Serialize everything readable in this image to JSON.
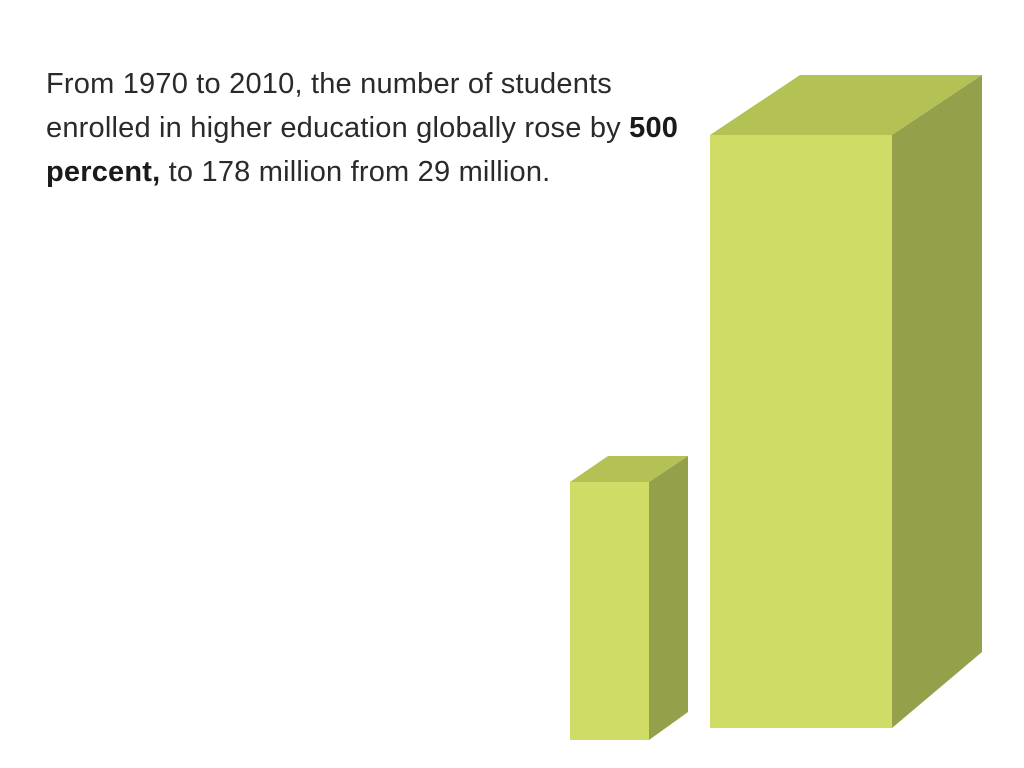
{
  "text": {
    "before": "From 1970 to 2010, the number of students enrolled in higher education globally rose by ",
    "bold": "500 percent,",
    "after": " to 178 million from 29 million."
  }
}
